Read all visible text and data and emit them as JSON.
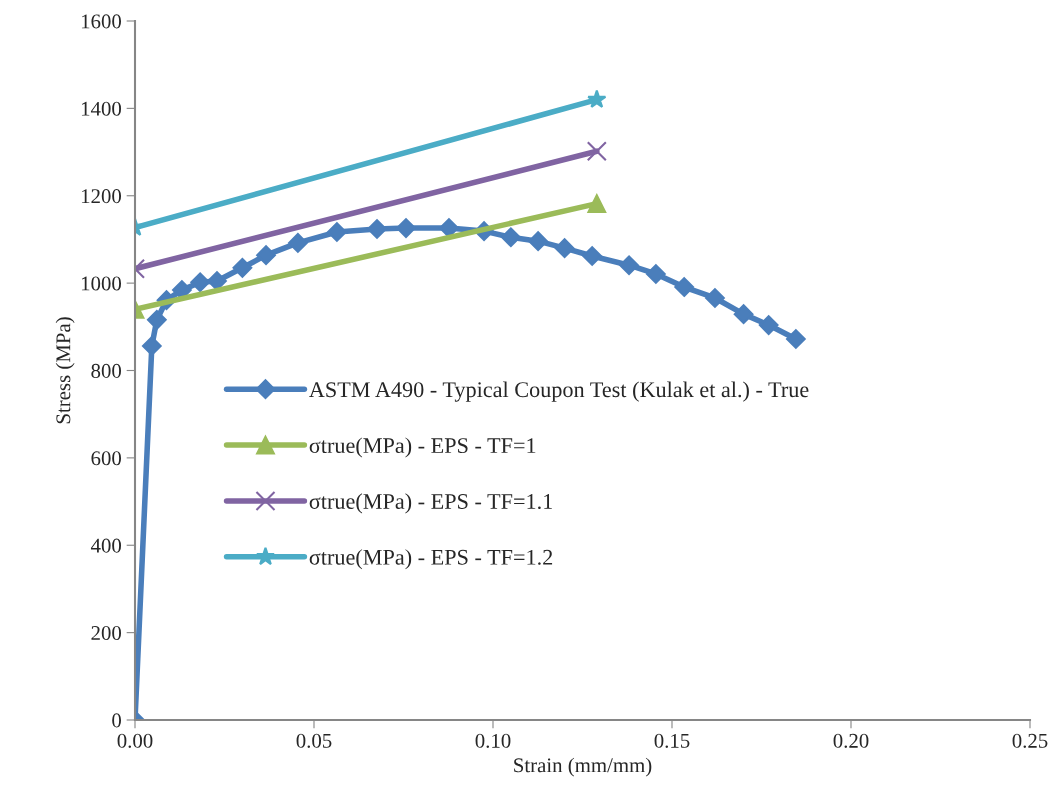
{
  "chart_data": {
    "type": "line",
    "xlabel": "Strain (mm/mm)",
    "ylabel": "Stress (MPa)",
    "xlim": [
      0,
      0.25
    ],
    "xticks": [
      {
        "value": 0,
        "label": "0.00"
      },
      {
        "value": 0.05,
        "label": "0.05"
      },
      {
        "value": 0.1,
        "label": "0.10"
      },
      {
        "value": 0.15,
        "label": "0.15"
      },
      {
        "value": 0.2,
        "label": "0.20"
      },
      {
        "value": 0.25,
        "label": "0.25"
      }
    ],
    "ylim": [
      0,
      1600
    ],
    "yticks": [
      0,
      200,
      400,
      600,
      800,
      1000,
      1200,
      1400,
      1600
    ],
    "grid": false,
    "legend": "center left",
    "series": [
      {
        "name": "ASTM A490 - Typical Coupon Test (Kulak et al.) - True",
        "color": "#4a7ebb",
        "marker": "diamond",
        "x": [
          0,
          0.0047,
          0.0061,
          0.0088,
          0.0131,
          0.0182,
          0.0229,
          0.03,
          0.0366,
          0.0455,
          0.0564,
          0.0676,
          0.0757,
          0.0877,
          0.0975,
          0.105,
          0.1126,
          0.12,
          0.1277,
          0.138,
          0.1455,
          0.1534,
          0.162,
          0.17,
          0.177,
          0.1846
        ],
        "values": [
          0,
          856,
          916,
          961,
          984,
          1002,
          1005,
          1035,
          1064,
          1092,
          1117,
          1124,
          1126,
          1126,
          1119,
          1105,
          1096,
          1080,
          1062,
          1041,
          1021,
          991,
          966,
          929,
          904,
          872
        ]
      },
      {
        "name": "σtrue(MPa) - EPS - TF=1",
        "color": "#9bbb59",
        "marker": "triangle",
        "x": [
          0,
          0.129
        ],
        "values": [
          940,
          1182
        ]
      },
      {
        "name": "σtrue(MPa) - EPS - TF=1.1",
        "color": "#8064a2",
        "marker": "cross",
        "x": [
          0,
          0.129
        ],
        "values": [
          1033,
          1302
        ]
      },
      {
        "name": "σtrue(MPa) - EPS - TF=1.2",
        "color": "#4bacc6",
        "marker": "star",
        "x": [
          0,
          0.129
        ],
        "values": [
          1127,
          1420
        ]
      }
    ]
  }
}
